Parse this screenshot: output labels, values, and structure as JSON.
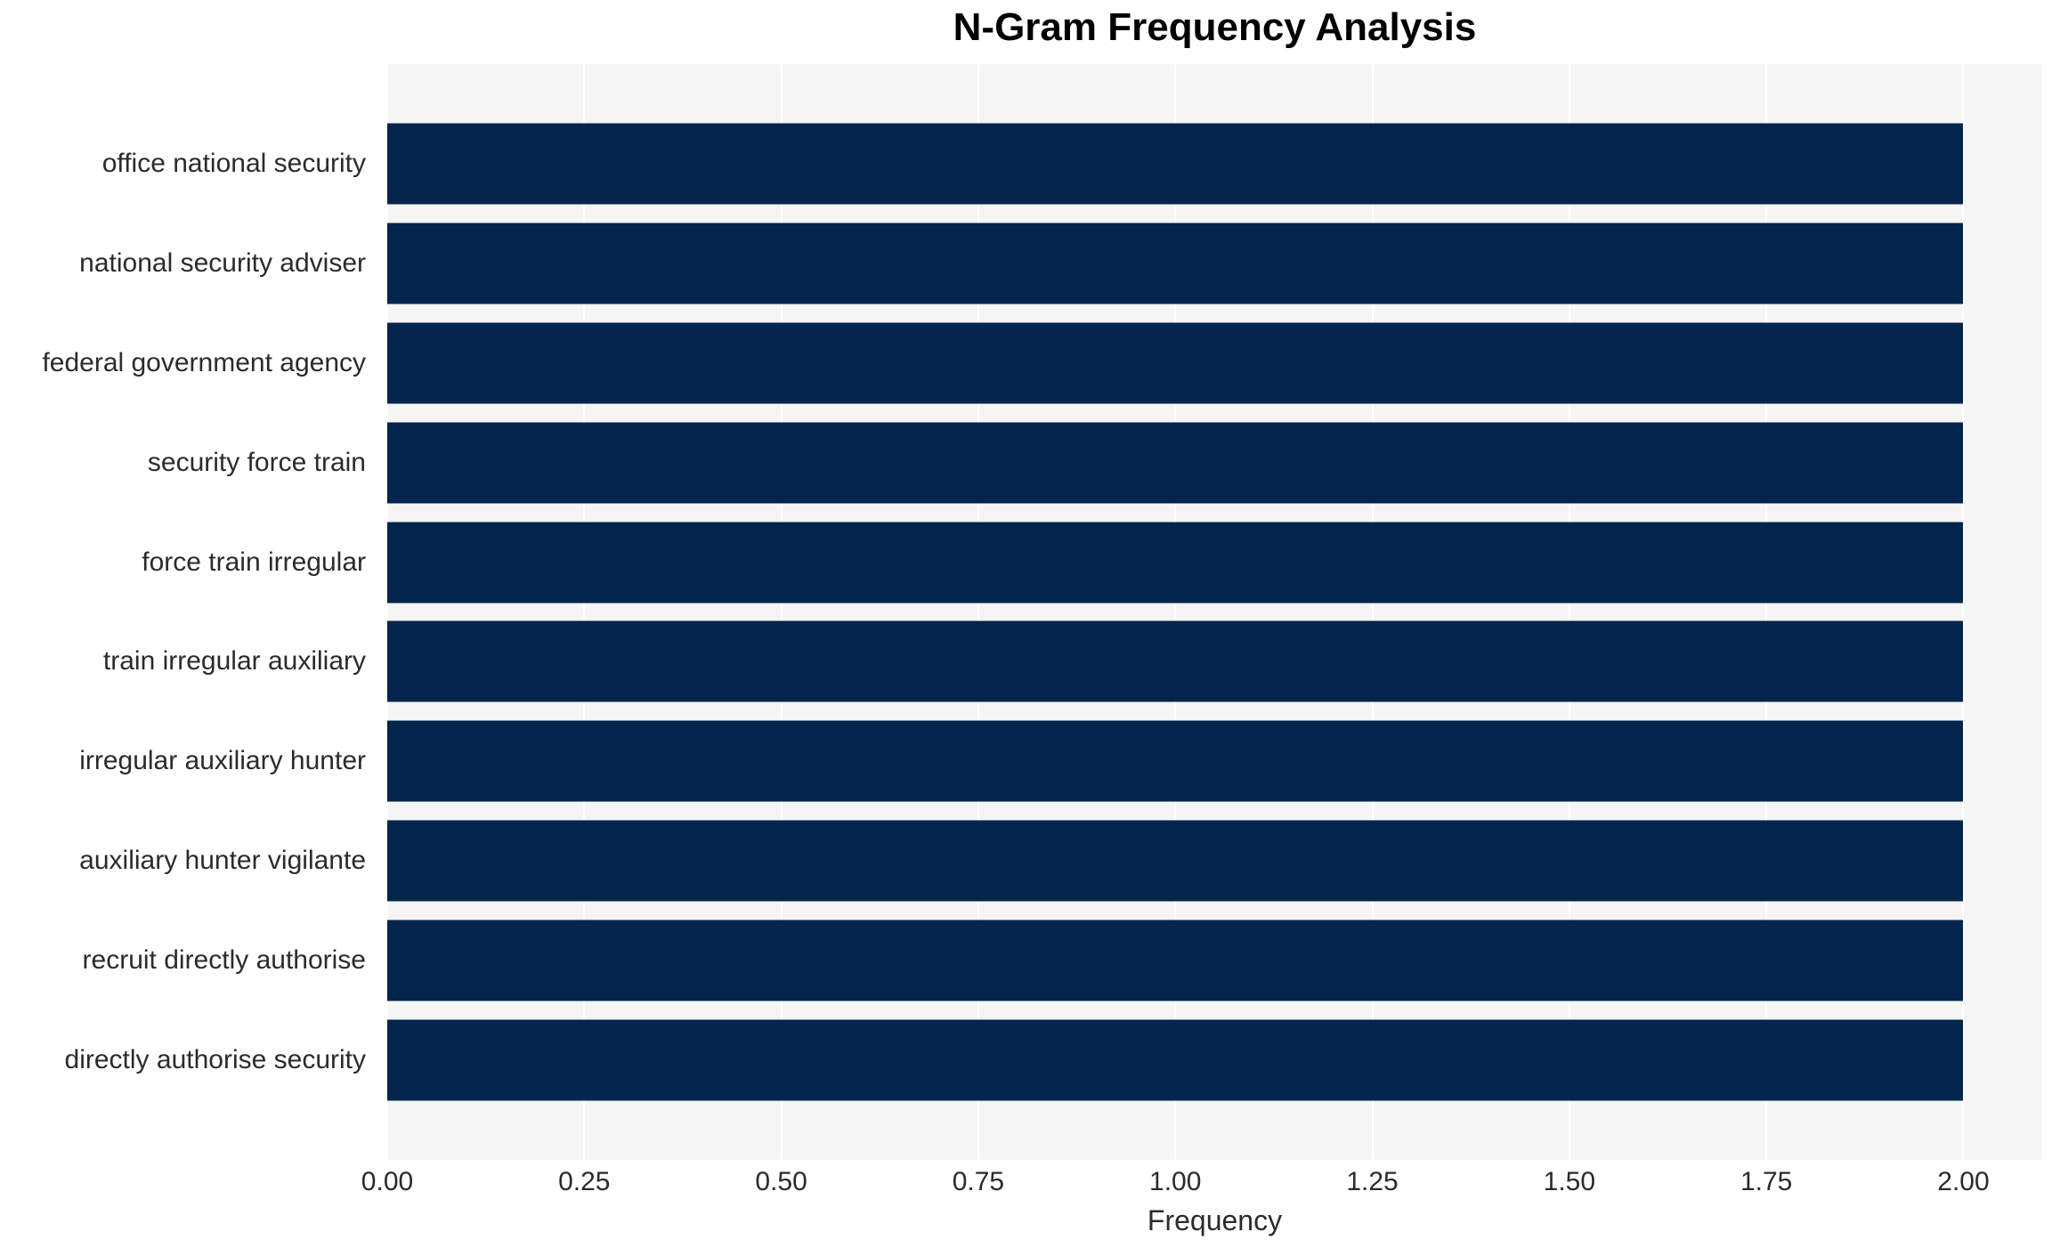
{
  "chart_data": {
    "type": "bar",
    "orientation": "horizontal",
    "title": "N-Gram Frequency Analysis",
    "xlabel": "Frequency",
    "ylabel": "",
    "categories": [
      "office national security",
      "national security adviser",
      "federal government agency",
      "security force train",
      "force train irregular",
      "train irregular auxiliary",
      "irregular auxiliary hunter",
      "auxiliary hunter vigilante",
      "recruit directly authorise",
      "directly authorise security"
    ],
    "values": [
      2,
      2,
      2,
      2,
      2,
      2,
      2,
      2,
      2,
      2
    ],
    "xlim": [
      0,
      2.1
    ],
    "x_ticks": [
      0,
      0.25,
      0.5,
      0.75,
      1.0,
      1.25,
      1.5,
      1.75,
      2.0
    ],
    "x_tick_labels": [
      "0.00",
      "0.25",
      "0.50",
      "0.75",
      "1.00",
      "1.25",
      "1.50",
      "1.75",
      "2.00"
    ],
    "grid": "vertical-white-gridlines",
    "legend": "none",
    "colors": {
      "bar": "#03254c",
      "plot_background": "#f5f5f6",
      "figure_background": "#ffffff",
      "grid_line": "#ffffff",
      "tick_text": "#2b2b2b",
      "title_text": "#000000"
    }
  }
}
